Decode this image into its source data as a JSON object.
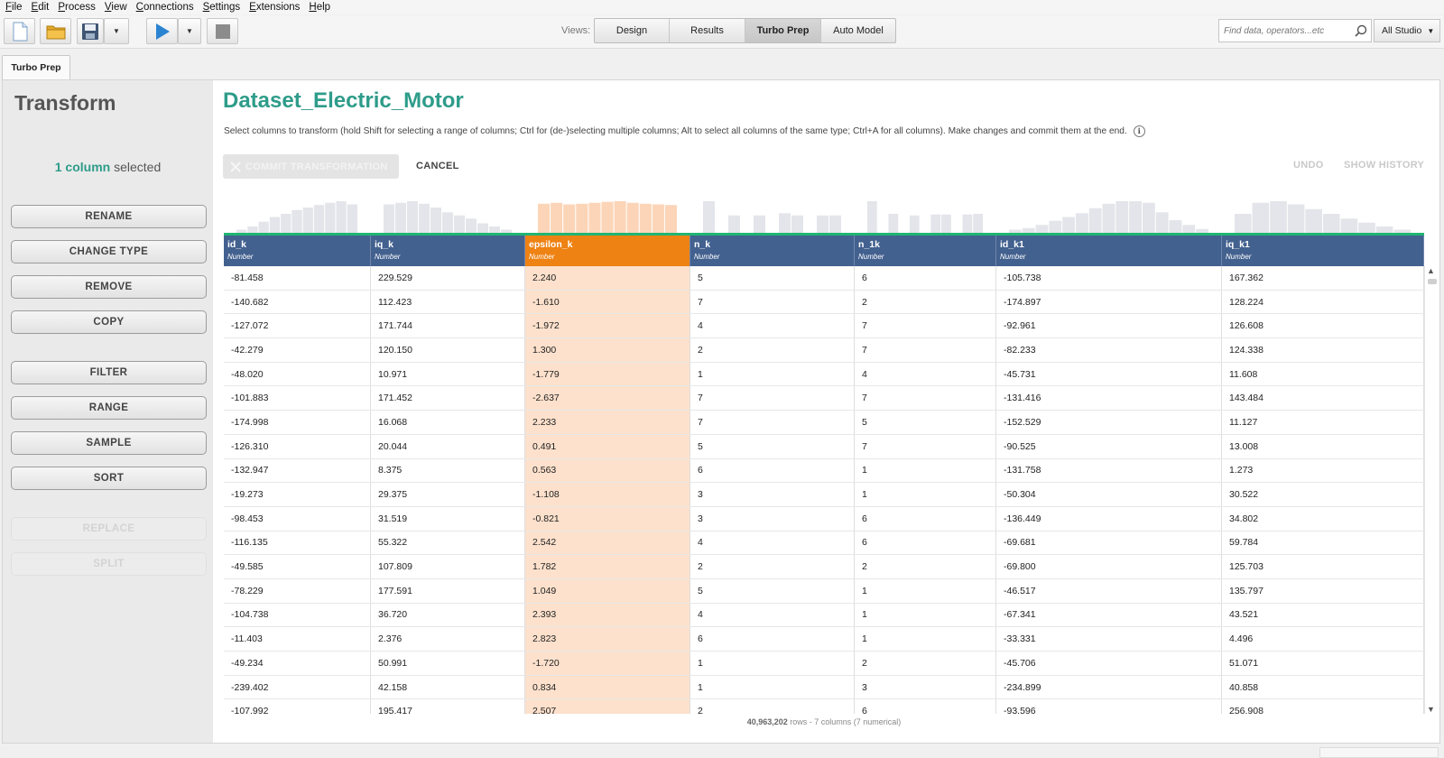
{
  "menu": [
    "File",
    "Edit",
    "Process",
    "View",
    "Connections",
    "Settings",
    "Extensions",
    "Help"
  ],
  "toolbar": {
    "views_label": "Views:",
    "views": [
      "Design",
      "Results",
      "Turbo Prep",
      "Auto Model"
    ],
    "active_view": "Turbo Prep",
    "search_placeholder": "Find data, operators...etc",
    "scope": "All Studio"
  },
  "tab": {
    "label": "Turbo Prep"
  },
  "left": {
    "title": "Transform",
    "selected_count": "1 column",
    "selected_suffix": " selected",
    "buttons": [
      "RENAME",
      "CHANGE TYPE",
      "REMOVE",
      "COPY",
      "FILTER",
      "RANGE",
      "SAMPLE",
      "SORT",
      "REPLACE",
      "SPLIT"
    ],
    "disabled_buttons": [
      "REPLACE",
      "SPLIT"
    ]
  },
  "main": {
    "dataset_title": "Dataset_Electric_Motor",
    "instructions": "Select columns to transform (hold Shift for selecting a range of columns; Ctrl for (de-)selecting multiple columns; Alt to select all columns of the same type; Ctrl+A for all columns).  Make changes and commit them at the end.",
    "commit_label": "COMMIT TRANSFORMATION",
    "cancel_label": "CANCEL",
    "undo_label": "UNDO",
    "history_label": "SHOW HISTORY",
    "footer_rows": "40,963,202",
    "footer_text": " rows - 7 columns (7 numerical)"
  },
  "colors": {
    "accent": "#2e9c8a",
    "header": "#43618f",
    "selected_header": "#ee8213",
    "selected_cell": "#fde1cc",
    "histogram": "#e3e5ea",
    "histogram_selected": "#fcd5b8",
    "quality_bar": "#20b573"
  },
  "table": {
    "selected_column": 2,
    "columns": [
      {
        "name": "id_k",
        "type": "Number"
      },
      {
        "name": "iq_k",
        "type": "Number"
      },
      {
        "name": "epsilon_k",
        "type": "Number"
      },
      {
        "name": "n_k",
        "type": "Number"
      },
      {
        "name": "n_1k",
        "type": "Number"
      },
      {
        "name": "id_k1",
        "type": "Number"
      },
      {
        "name": "iq_k1",
        "type": "Number"
      }
    ],
    "rows": [
      [
        "-81.458",
        "229.529",
        "2.240",
        "5",
        "6",
        "-105.738",
        "167.362"
      ],
      [
        "-140.682",
        "112.423",
        "-1.610",
        "7",
        "2",
        "-174.897",
        "128.224"
      ],
      [
        "-127.072",
        "171.744",
        "-1.972",
        "4",
        "7",
        "-92.961",
        "126.608"
      ],
      [
        "-42.279",
        "120.150",
        "1.300",
        "2",
        "7",
        "-82.233",
        "124.338"
      ],
      [
        "-48.020",
        "10.971",
        "-1.779",
        "1",
        "4",
        "-45.731",
        "11.608"
      ],
      [
        "-101.883",
        "171.452",
        "-2.637",
        "7",
        "7",
        "-131.416",
        "143.484"
      ],
      [
        "-174.998",
        "16.068",
        "2.233",
        "7",
        "5",
        "-152.529",
        "11.127"
      ],
      [
        "-126.310",
        "20.044",
        "0.491",
        "5",
        "7",
        "-90.525",
        "13.008"
      ],
      [
        "-132.947",
        "8.375",
        "0.563",
        "6",
        "1",
        "-131.758",
        "1.273"
      ],
      [
        "-19.273",
        "29.375",
        "-1.108",
        "3",
        "1",
        "-50.304",
        "30.522"
      ],
      [
        "-98.453",
        "31.519",
        "-0.821",
        "3",
        "6",
        "-136.449",
        "34.802"
      ],
      [
        "-116.135",
        "55.322",
        "2.542",
        "4",
        "6",
        "-69.681",
        "59.784"
      ],
      [
        "-49.585",
        "107.809",
        "1.782",
        "2",
        "2",
        "-69.800",
        "125.703"
      ],
      [
        "-78.229",
        "177.591",
        "1.049",
        "5",
        "1",
        "-46.517",
        "135.797"
      ],
      [
        "-104.738",
        "36.720",
        "2.393",
        "4",
        "1",
        "-67.341",
        "43.521"
      ],
      [
        "-11.403",
        "2.376",
        "2.823",
        "6",
        "1",
        "-33.331",
        "4.496"
      ],
      [
        "-49.234",
        "50.991",
        "-1.720",
        "1",
        "2",
        "-45.706",
        "51.071"
      ],
      [
        "-239.402",
        "42.158",
        "0.834",
        "1",
        "3",
        "-234.899",
        "40.858"
      ],
      [
        "-107.992",
        "195.417",
        "2.507",
        "2",
        "6",
        "-93.596",
        "256.908"
      ]
    ]
  },
  "histograms": [
    [
      0.1,
      0.2,
      0.35,
      0.5,
      0.6,
      0.72,
      0.8,
      0.88,
      0.95,
      1.0,
      0.9
    ],
    [
      0.9,
      0.95,
      1.0,
      0.92,
      0.8,
      0.65,
      0.55,
      0.45,
      0.3,
      0.2,
      0.1
    ],
    [
      0.92,
      0.95,
      0.9,
      0.92,
      0.95,
      0.98,
      1.0,
      0.95,
      0.92,
      0.9,
      0.88
    ],
    [
      1.0,
      0.0,
      0.55,
      0.0,
      0.55,
      0.0,
      0.62,
      0.55,
      0.0,
      0.55,
      0.55
    ],
    [
      1.0,
      0.0,
      0.6,
      0.0,
      0.55,
      0.0,
      0.58,
      0.58,
      0.0,
      0.58,
      0.6
    ],
    [
      0.1,
      0.15,
      0.25,
      0.38,
      0.5,
      0.62,
      0.78,
      0.92,
      1.0,
      1.0,
      0.95,
      0.65,
      0.4,
      0.25,
      0.12
    ],
    [
      0.6,
      0.95,
      1.0,
      0.9,
      0.75,
      0.6,
      0.45,
      0.32,
      0.2,
      0.1
    ]
  ]
}
